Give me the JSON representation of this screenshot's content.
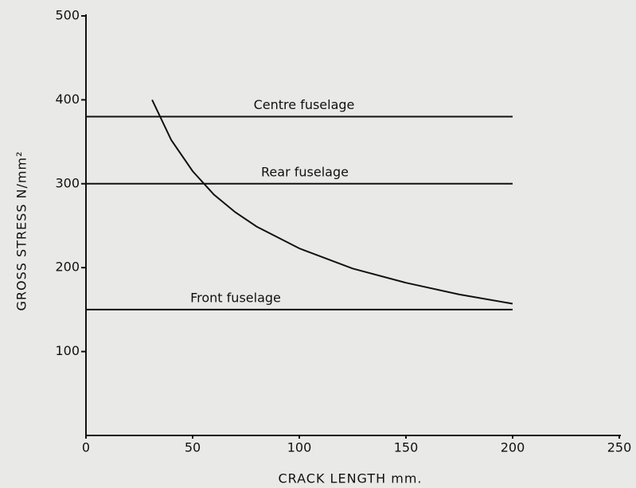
{
  "chart_data": {
    "type": "line",
    "xlabel": "CRACK LENGTH mm.",
    "ylabel": "GROSS STRESS N/mm²",
    "xlim": [
      0,
      250
    ],
    "xticks": [
      0,
      50,
      100,
      150,
      200,
      250
    ],
    "ylim": [
      0,
      500
    ],
    "yticks": [
      100,
      200,
      300,
      400,
      500
    ],
    "series": [
      {
        "name": "Centre fuselage",
        "color": "#111111",
        "x": [
          0,
          200
        ],
        "values": [
          380,
          380
        ]
      },
      {
        "name": "Rear fuselage",
        "color": "#111111",
        "x": [
          0,
          200
        ],
        "values": [
          300,
          300
        ]
      },
      {
        "name": "Front fuselage",
        "color": "#111111",
        "x": [
          0,
          200
        ],
        "values": [
          150,
          150
        ]
      },
      {
        "color": "#111111",
        "x": [
          31,
          40,
          50,
          60,
          70,
          80,
          100,
          125,
          150,
          175,
          200
        ],
        "values": [
          400,
          352,
          315,
          287,
          266,
          249,
          223,
          199,
          182,
          168,
          157
        ]
      }
    ]
  }
}
